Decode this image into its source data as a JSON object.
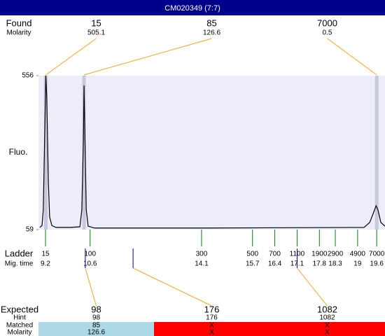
{
  "title": "CM020349 (7:7)",
  "found": {
    "label": "Found",
    "molarity_label": "Molarity",
    "color": "#f5a623",
    "peaks": [
      {
        "size": 15,
        "molarity": 505.1,
        "time": 9.21
      },
      {
        "size": 85,
        "molarity": 126.6,
        "time": 10.41
      },
      {
        "size": 7000,
        "molarity": 0.5,
        "time": 19.6
      }
    ]
  },
  "chart_data": {
    "type": "line",
    "ylabel": "Fluo.",
    "x": [
      9.02,
      9.09,
      9.13,
      9.18,
      9.21,
      9.24,
      9.29,
      9.33,
      9.4,
      9.53,
      9.97,
      10.28,
      10.34,
      10.39,
      10.41,
      10.44,
      10.48,
      10.54,
      10.74,
      14.37,
      19.2,
      19.38,
      19.49,
      19.58,
      19.64,
      19.73,
      19.86
    ],
    "series": [
      {
        "color": "#000000",
        "values": [
          66,
          72,
          122,
          393,
          556,
          484,
          213,
          100,
          72,
          66,
          66,
          68,
          122,
          348,
          524,
          348,
          122,
          70,
          64,
          64,
          66,
          82,
          111,
          136,
          122,
          82,
          70
        ]
      }
    ],
    "xlim": [
      8.98,
      19.86
    ],
    "ylim": [
      59,
      556
    ],
    "yticks": [
      59,
      556
    ],
    "background": "#ededfa"
  },
  "ladder": {
    "label": "Ladder",
    "time_label": "Mig. time",
    "color": "#008000",
    "sizes": [
      15,
      100,
      300,
      500,
      700,
      1100,
      1900,
      2900,
      4900,
      7000
    ],
    "times": [
      9.2,
      10.6,
      14.1,
      15.7,
      16.4,
      17.1,
      17.8,
      18.3,
      19,
      19.6
    ]
  },
  "expected": {
    "label": "Expected",
    "hint_label": "Hint",
    "matched_label": "Matched",
    "molarity_label": "Molarity",
    "marker_color": "#00008b",
    "items": [
      {
        "size": 98,
        "hint": 98,
        "matched": 85,
        "molarity": 126.6,
        "time": 10.45,
        "fill": "#add8e6"
      },
      {
        "size": 176,
        "hint": 176,
        "matched": "X",
        "molarity": "X",
        "time": 11.95,
        "fill": "#ff0000"
      },
      {
        "size": 1082,
        "hint": 1082,
        "matched": "X",
        "molarity": "X",
        "time": 17.1,
        "fill": "#ff0000"
      }
    ]
  }
}
